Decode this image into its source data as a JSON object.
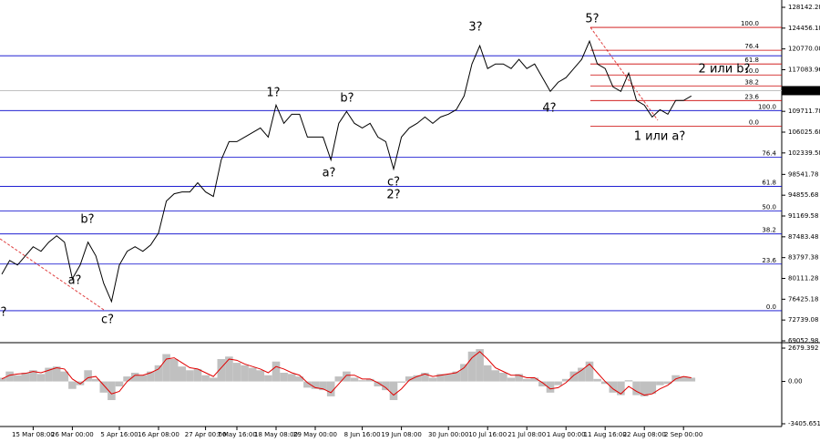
{
  "chart_data": [
    {
      "type": "line",
      "categories": [
        null,
        null,
        null,
        null,
        "15 Mar 08:00",
        null,
        null,
        null,
        null,
        "26 Mar 00:00",
        null,
        null,
        null,
        null,
        null,
        "5 Apr 16:00",
        null,
        null,
        null,
        null,
        "16 Apr 08:00",
        null,
        null,
        null,
        null,
        null,
        "27 Apr 00:00",
        null,
        null,
        null,
        "7 May 16:00",
        null,
        null,
        null,
        null,
        "18 May 08:00",
        null,
        null,
        null,
        null,
        "29 May 00:00",
        null,
        null,
        null,
        null,
        null,
        "8 Jun 16:00",
        null,
        null,
        null,
        null,
        "19 Jun 08:00",
        null,
        null,
        null,
        null,
        null,
        "30 Jun 00:00",
        null,
        null,
        null,
        null,
        "10 Jul 16:00",
        null,
        null,
        null,
        null,
        "21 Jul 08:00",
        null,
        null,
        null,
        null,
        "1 Aug 00:00",
        null,
        null,
        null,
        null,
        "11 Aug 16:00",
        null,
        null,
        null,
        null,
        "22 Aug 08:00",
        null,
        null,
        null,
        null,
        "2 Sep 00:00",
        null
      ],
      "values": [
        80867,
        83296,
        82486,
        84105,
        85724,
        84915,
        86534,
        87664,
        86534,
        80058,
        82486,
        86534,
        84105,
        79248,
        76010,
        82486,
        84915,
        85724,
        84915,
        86048,
        88152,
        93819,
        95114,
        95438,
        95438,
        97057,
        95438,
        94629,
        101105,
        104343,
        104343,
        105152,
        105962,
        106771,
        105152,
        110819,
        107581,
        109200,
        109200,
        105152,
        105152,
        105152,
        101105,
        107581,
        109685,
        107581,
        106771,
        107581,
        105152,
        104343,
        99486,
        105152,
        106771,
        107581,
        108714,
        107581,
        108714,
        109200,
        110009,
        112437,
        118104,
        121342,
        117294,
        118104,
        118104,
        117294,
        118914,
        117294,
        118104,
        115675,
        113247,
        114866,
        115675,
        117294,
        118914,
        122152,
        118104,
        117294,
        114056,
        113247,
        116485,
        111628,
        110819,
        108714,
        110009,
        109200,
        111628,
        111628,
        112437
      ],
      "color": "#000000",
      "ylim": [
        68729,
        129437
      ],
      "yticks": [
        128142.28,
        124456.18,
        120770.08,
        117083.96,
        109711.78,
        106025.68,
        102339.58,
        98541.78,
        94855.68,
        91169.58,
        87483.48,
        83797.38,
        80111.28,
        76425.18,
        72739.08,
        69052.98
      ],
      "current_price": 113379.78,
      "blue_levels": {
        "color": "#0000cc",
        "values": [
          74391,
          82649,
          87991,
          92038,
          96410,
          101590,
          109847,
          119561
        ],
        "labels": [
          "0.0",
          "23.6",
          "38.2",
          "50.0",
          "61.8",
          "76.4",
          "100.0",
          null
        ]
      },
      "red_levels": {
        "color": "#cc0000",
        "values": [
          124580,
          120533,
          118104,
          116162,
          114219,
          111628,
          107095
        ],
        "labels": [
          "100.0",
          "76.4",
          "61.8",
          "50.0",
          "38.2",
          "23.6",
          "0.0"
        ]
      },
      "annotations": [
        {
          "text": "?",
          "color": "#1c1cc8"
        },
        {
          "text": "a?",
          "color": "#1c1cc8"
        },
        {
          "text": "b?",
          "color": "#1c1cc8"
        },
        {
          "text": "c?",
          "color": "#1c1cc8"
        },
        {
          "text": "1?",
          "color": "#1c1cc8"
        },
        {
          "text": "a?",
          "color": "#c83232"
        },
        {
          "text": "b?",
          "color": "#c83232"
        },
        {
          "text": "c?",
          "color": "#c83232"
        },
        {
          "text": "2?",
          "color": "#1c1cc8"
        },
        {
          "text": "3?",
          "color": "#1c1cc8"
        },
        {
          "text": "4?",
          "color": "#1c1cc8"
        },
        {
          "text": "5?",
          "color": "#1c1cc8"
        },
        {
          "text": "1 или a?",
          "color": "#1c1cc8"
        },
        {
          "text": "2 или b?",
          "color": "#1c1cc8"
        }
      ]
    },
    {
      "type": "bar",
      "values": [
        300,
        800,
        500,
        700,
        900,
        600,
        1100,
        1200,
        800,
        -600,
        -300,
        900,
        200,
        -900,
        -1500,
        -400,
        400,
        700,
        500,
        800,
        1300,
        2200,
        1800,
        1200,
        900,
        1000,
        500,
        300,
        1800,
        2000,
        1500,
        1300,
        1100,
        900,
        500,
        1600,
        700,
        600,
        400,
        -500,
        -600,
        -700,
        -1200,
        400,
        800,
        300,
        100,
        200,
        -400,
        -700,
        -1500,
        -100,
        400,
        500,
        700,
        300,
        600,
        600,
        800,
        1400,
        2400,
        2600,
        1300,
        900,
        700,
        300,
        600,
        200,
        300,
        -400,
        -900,
        -300,
        200,
        800,
        1100,
        1600,
        200,
        -200,
        -900,
        -1100,
        100,
        -1100,
        -1200,
        -1000,
        -300,
        -200,
        500,
        400,
        300
      ],
      "color": "#c0c0c0",
      "signal": {
        "color": "#e00000",
        "values": [
          200,
          500,
          600,
          650,
          800,
          700,
          900,
          1100,
          1000,
          200,
          -200,
          300,
          400,
          -300,
          -1000,
          -800,
          0,
          500,
          500,
          700,
          1000,
          1800,
          1900,
          1500,
          1100,
          1000,
          700,
          400,
          1100,
          1800,
          1700,
          1400,
          1200,
          1000,
          700,
          1200,
          1000,
          700,
          500,
          -100,
          -500,
          -600,
          -900,
          -200,
          500,
          500,
          200,
          200,
          -100,
          -500,
          -1100,
          -600,
          100,
          400,
          600,
          400,
          500,
          600,
          700,
          1100,
          1900,
          2400,
          1800,
          1100,
          800,
          500,
          500,
          300,
          300,
          -100,
          -600,
          -500,
          -100,
          500,
          900,
          1400,
          700,
          0,
          -600,
          -1000,
          -400,
          -800,
          -1100,
          -1000,
          -600,
          -300,
          200,
          400,
          300
        ]
      },
      "ylim": [
        -3625,
        3119
      ],
      "yticks": [
        2679.392,
        {
          "value": 0,
          "label": "0.00"
        },
        -3405.651
      ]
    }
  ]
}
